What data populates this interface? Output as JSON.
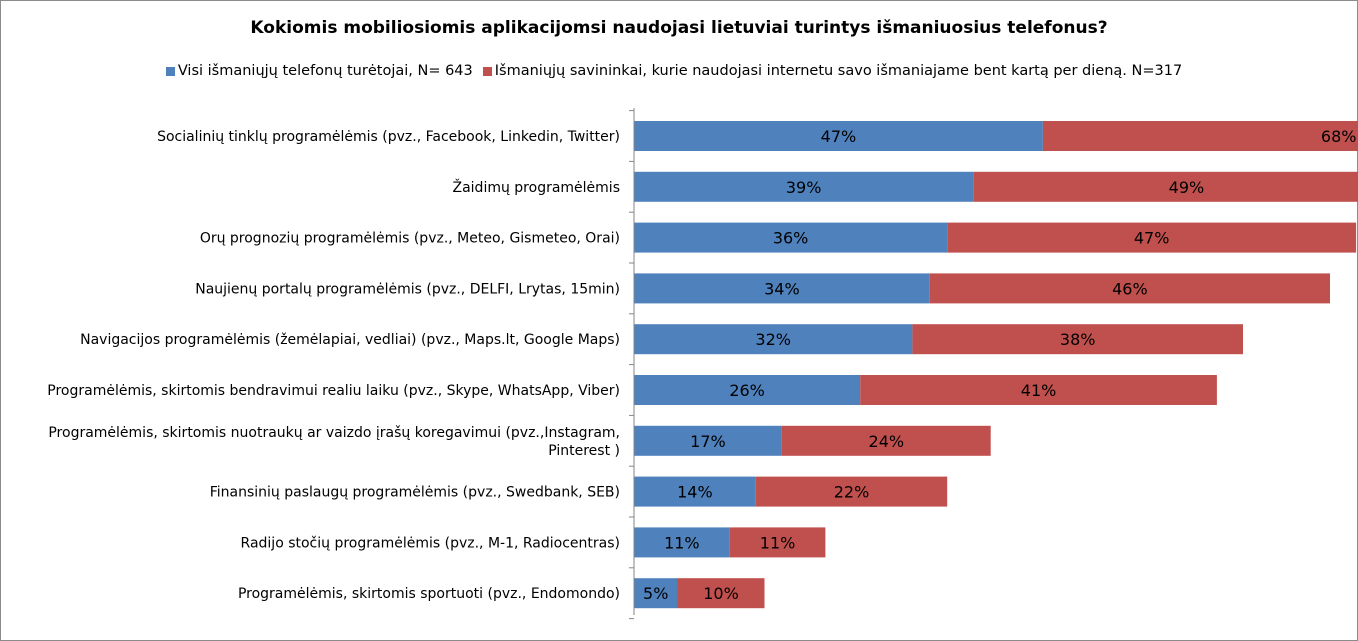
{
  "title": "Kokiomis mobiliosiomis aplikacijomsi naudojasi lietuviai turintys išmaniuosius telefonus?",
  "colors": {
    "series1": "#4f81bd",
    "series2": "#c0504d"
  },
  "legend": [
    {
      "label": "Visi išmaniųjų telefonų turėtojai, N= 643"
    },
    {
      "label": "Išmaniųjų savininkai, kurie naudojasi internetu savo išmaniajame bent kartą per dieną. N=317"
    }
  ],
  "chart_data": {
    "type": "bar",
    "orientation": "horizontal",
    "stacked": true,
    "categories": [
      [
        "Socialinių tinklų programėlėmis (pvz., Facebook, Linkedin, Twitter)"
      ],
      [
        "Žaidimų programėlėmis"
      ],
      [
        "Orų prognozių programėlėmis (pvz., Meteo, Gismeteo, Orai)"
      ],
      [
        "Naujienų portalų programėlėmis (pvz., DELFI, Lrytas, 15min)"
      ],
      [
        "Navigacijos programėlėmis (žemėlapiai, vedliai) (pvz., Maps.lt, Google Maps)"
      ],
      [
        "Programėlėmis, skirtomis bendravimui realiu laiku (pvz., Skype, WhatsApp, Viber)"
      ],
      [
        "Programėlėmis, skirtomis nuotraukų ar vaizdo įrašų koregavimui (pvz.,Instagram,",
        "Pinterest )"
      ],
      [
        "Finansinių paslaugų programėlėmis (pvz., Swedbank, SEB)"
      ],
      [
        "Radijo stočių programėlėmis (pvz., M-1, Radiocentras)"
      ],
      [
        "Programėlėmis, skirtomis sportuoti (pvz., Endomondo)"
      ]
    ],
    "series": [
      {
        "name": "Visi išmaniųjų telefonų turėtojai, N= 643",
        "values": [
          47,
          39,
          36,
          34,
          32,
          26,
          17,
          14,
          11,
          5
        ],
        "labels": [
          "47%",
          "39%",
          "36%",
          "34%",
          "32%",
          "26%",
          "17%",
          "14%",
          "11%",
          "5%"
        ]
      },
      {
        "name": "Išmaniųjų savininkai, kurie naudojasi internetu savo išmaniajame bent kartą per dieną. N=317",
        "values": [
          68,
          49,
          47,
          46,
          38,
          41,
          24,
          22,
          11,
          10
        ],
        "labels": [
          "68%",
          "49%",
          "47%",
          "46%",
          "38%",
          "41%",
          "24%",
          "22%",
          "11%",
          "10%"
        ]
      }
    ],
    "xlabel": "",
    "ylabel": "",
    "legend_position": "top",
    "grid": false
  }
}
